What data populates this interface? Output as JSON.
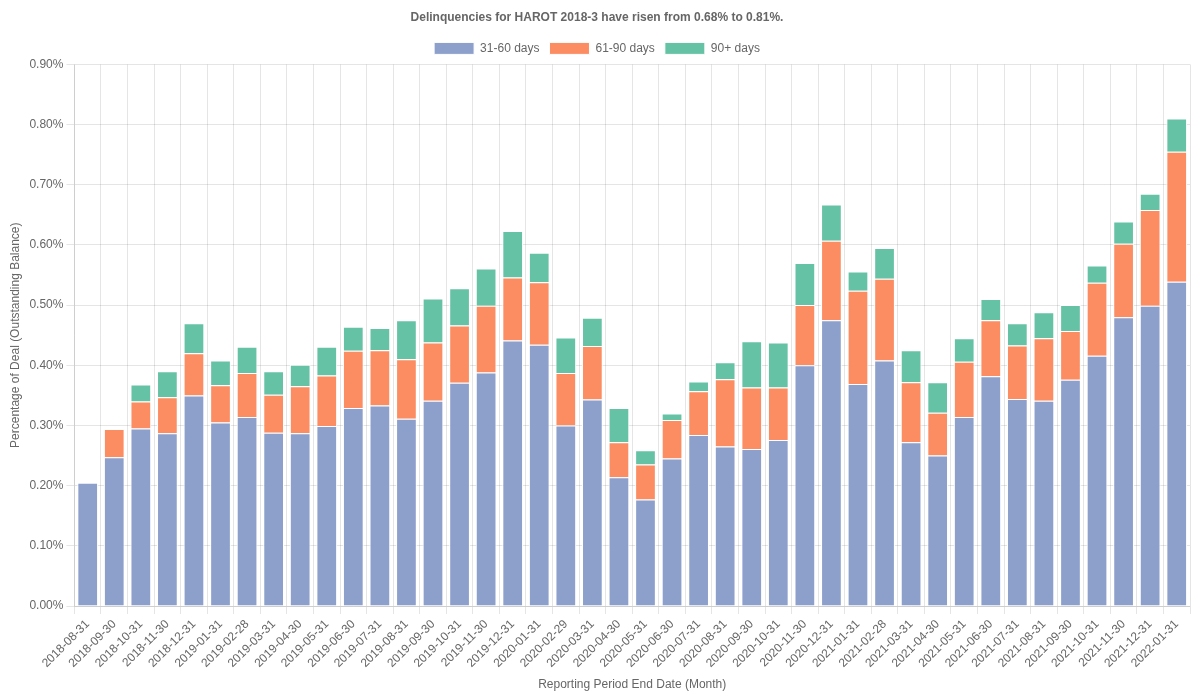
{
  "chart_data": {
    "type": "bar",
    "title": "Delinquencies for HAROT 2018-3 have risen from 0.68% to 0.81%.",
    "x_label": "Reporting Period End Date (Month)",
    "y_label": "Percentage of Deal (Outstanding Balance)",
    "stacked": true,
    "grid": true,
    "legend": "top",
    "categories": [
      "2018-08-31",
      "2018-09-30",
      "2018-10-31",
      "2018-11-30",
      "2018-12-31",
      "2019-01-31",
      "2019-02-28",
      "2019-03-31",
      "2019-04-30",
      "2019-05-31",
      "2019-06-30",
      "2019-07-31",
      "2019-08-31",
      "2019-09-30",
      "2019-10-31",
      "2019-11-30",
      "2019-12-31",
      "2020-01-31",
      "2020-02-29",
      "2020-03-31",
      "2020-04-30",
      "2020-05-31",
      "2020-06-30",
      "2020-07-31",
      "2020-08-31",
      "2020-09-30",
      "2020-10-31",
      "2020-11-30",
      "2020-12-31",
      "2021-01-31",
      "2021-02-28",
      "2021-03-31",
      "2021-04-30",
      "2021-05-31",
      "2021-06-30",
      "2021-07-31",
      "2021-08-31",
      "2021-09-30",
      "2021-10-31",
      "2021-11-30",
      "2021-12-31",
      "2022-01-31"
    ],
    "series": [
      {
        "name": "31-60 days",
        "color": "#8da0cb",
        "values": [
          0.205,
          0.247,
          0.295,
          0.287,
          0.35,
          0.305,
          0.314,
          0.288,
          0.287,
          0.299,
          0.329,
          0.333,
          0.311,
          0.341,
          0.371,
          0.388,
          0.441,
          0.434,
          0.3,
          0.343,
          0.214,
          0.177,
          0.245,
          0.284,
          0.265,
          0.261,
          0.276,
          0.4,
          0.475,
          0.369,
          0.408,
          0.272,
          0.25,
          0.314,
          0.382,
          0.344,
          0.341,
          0.376,
          0.416,
          0.48,
          0.499,
          0.539
        ]
      },
      {
        "name": "61-90 days",
        "color": "#fc8d62",
        "values": [
          0,
          0.047,
          0.045,
          0.06,
          0.07,
          0.062,
          0.073,
          0.063,
          0.078,
          0.084,
          0.095,
          0.092,
          0.099,
          0.097,
          0.095,
          0.111,
          0.105,
          0.104,
          0.087,
          0.089,
          0.058,
          0.058,
          0.064,
          0.073,
          0.112,
          0.102,
          0.087,
          0.1,
          0.132,
          0.155,
          0.136,
          0.1,
          0.071,
          0.092,
          0.093,
          0.089,
          0.104,
          0.081,
          0.121,
          0.122,
          0.159,
          0.216
        ]
      },
      {
        "name": "90+ days",
        "color": "#66c2a5",
        "values": [
          0,
          0,
          0.028,
          0.043,
          0.05,
          0.041,
          0.044,
          0.039,
          0.036,
          0.048,
          0.04,
          0.037,
          0.065,
          0.073,
          0.062,
          0.062,
          0.077,
          0.049,
          0.059,
          0.047,
          0.057,
          0.024,
          0.011,
          0.016,
          0.028,
          0.077,
          0.075,
          0.07,
          0.06,
          0.032,
          0.051,
          0.053,
          0.051,
          0.039,
          0.035,
          0.037,
          0.043,
          0.043,
          0.029,
          0.037,
          0.027,
          0.055
        ]
      }
    ],
    "ylim": [
      0,
      0.9
    ],
    "yticks": [
      {
        "value": 0,
        "label": "0.00%"
      },
      {
        "value": 0.1,
        "label": "0.10%"
      },
      {
        "value": 0.2,
        "label": "0.20%"
      },
      {
        "value": 0.3,
        "label": "0.30%"
      },
      {
        "value": 0.4,
        "label": "0.40%"
      },
      {
        "value": 0.5,
        "label": "0.50%"
      },
      {
        "value": 0.6,
        "label": "0.60%"
      },
      {
        "value": 0.7,
        "label": "0.70%"
      },
      {
        "value": 0.8,
        "label": "0.80%"
      },
      {
        "value": 0.9,
        "label": "0.90%"
      }
    ]
  }
}
